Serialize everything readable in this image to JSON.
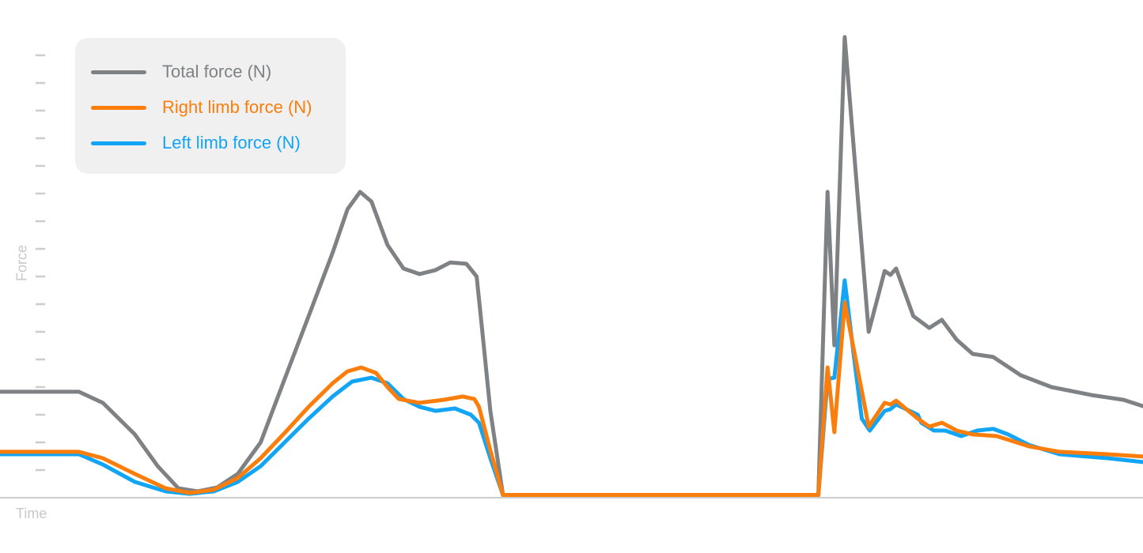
{
  "chart_data": {
    "type": "line",
    "title": "",
    "xlabel": "Time",
    "ylabel": "Force",
    "xlim": [
      0,
      100
    ],
    "ylim": [
      0,
      18
    ],
    "y_ticks": [
      1,
      2,
      3,
      4,
      5,
      6,
      7,
      8,
      9,
      10,
      11,
      12,
      13,
      14,
      15,
      16
    ],
    "y_tick_labels_shown": false,
    "grid": false,
    "legend_position": "top-left",
    "series": [
      {
        "name": "Total force (N)",
        "color": "#7f8285",
        "x": [
          0,
          6.9,
          9.0,
          11.8,
          13.8,
          15.6,
          17.3,
          19.0,
          20.8,
          22.8,
          24.9,
          27.0,
          29.1,
          30.4,
          31.5,
          32.5,
          33.9,
          35.3,
          36.7,
          38.1,
          39.4,
          40.8,
          41.7,
          42.2,
          42.9,
          44.0,
          71.6,
          72.4,
          73.0,
          73.9,
          76.0,
          77.4,
          77.9,
          78.4,
          79.9,
          81.3,
          82.4,
          83.7,
          85.1,
          86.9,
          89.3,
          92.0,
          95.5,
          98.3,
          100
        ],
        "y": [
          3.83,
          3.83,
          3.43,
          2.29,
          1.14,
          0.34,
          0.23,
          0.37,
          0.86,
          2.0,
          4.29,
          6.57,
          8.86,
          10.43,
          11.06,
          10.71,
          9.14,
          8.29,
          8.09,
          8.23,
          8.51,
          8.46,
          8.0,
          6.0,
          3.14,
          0.1,
          0.1,
          11.06,
          5.51,
          16.66,
          6.0,
          8.2,
          8.06,
          8.29,
          6.57,
          6.14,
          6.43,
          5.71,
          5.2,
          5.09,
          4.43,
          4.0,
          3.71,
          3.54,
          3.31
        ]
      },
      {
        "name": "Right limb force (N)",
        "color": "#fb7d0b",
        "x": [
          0,
          6.9,
          9.0,
          11.8,
          14.5,
          16.6,
          18.7,
          20.8,
          22.8,
          24.9,
          27.0,
          29.1,
          30.4,
          31.6,
          32.9,
          33.9,
          34.9,
          36.7,
          38.8,
          40.5,
          41.5,
          41.9,
          42.9,
          44.0,
          71.6,
          72.4,
          73.0,
          73.9,
          76.0,
          77.4,
          77.9,
          78.4,
          80.3,
          81.3,
          82.4,
          83.7,
          85.1,
          87.2,
          90.0,
          92.7,
          96.9,
          100
        ],
        "y": [
          1.66,
          1.66,
          1.43,
          0.86,
          0.34,
          0.17,
          0.29,
          0.71,
          1.43,
          2.34,
          3.29,
          4.14,
          4.57,
          4.71,
          4.51,
          4.0,
          3.57,
          3.43,
          3.54,
          3.66,
          3.57,
          3.29,
          1.71,
          0.1,
          0.1,
          4.71,
          2.37,
          7.06,
          2.57,
          3.43,
          3.37,
          3.51,
          2.86,
          2.57,
          2.71,
          2.43,
          2.29,
          2.23,
          1.86,
          1.66,
          1.57,
          1.49
        ]
      },
      {
        "name": "Left limb force (N)",
        "color": "#12a4f5",
        "x": [
          0,
          6.9,
          9.0,
          11.8,
          14.5,
          16.6,
          18.7,
          20.8,
          22.8,
          24.9,
          27.0,
          29.1,
          30.8,
          32.5,
          33.9,
          35.3,
          36.7,
          38.1,
          39.8,
          41.2,
          41.9,
          42.9,
          44.0,
          71.6,
          72.4,
          73.0,
          73.9,
          74.7,
          75.4,
          76.1,
          77.4,
          77.9,
          78.4,
          80.3,
          80.6,
          81.7,
          82.7,
          84.1,
          85.5,
          86.9,
          88.2,
          90.0,
          92.7,
          96.9,
          100
        ],
        "y": [
          1.57,
          1.57,
          1.2,
          0.57,
          0.23,
          0.14,
          0.23,
          0.57,
          1.14,
          2.0,
          2.86,
          3.66,
          4.2,
          4.34,
          4.14,
          3.57,
          3.29,
          3.14,
          3.23,
          3.0,
          2.71,
          1.43,
          0.1,
          0.1,
          4.29,
          4.34,
          7.86,
          5.14,
          2.86,
          2.43,
          3.14,
          3.2,
          3.37,
          3.0,
          2.71,
          2.43,
          2.43,
          2.23,
          2.43,
          2.49,
          2.29,
          1.91,
          1.57,
          1.43,
          1.29
        ]
      }
    ]
  }
}
